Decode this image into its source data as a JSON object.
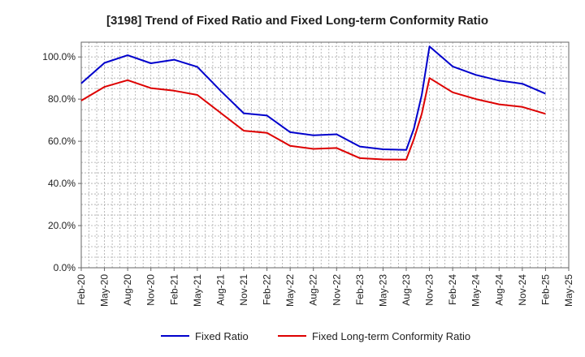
{
  "chart_data": {
    "type": "line",
    "title": "[3198]  Trend of Fixed Ratio and Fixed Long-term Conformity Ratio",
    "xlabel": "",
    "ylabel": "",
    "x_labels": [
      "Feb-20",
      "May-20",
      "Aug-20",
      "Nov-20",
      "Feb-21",
      "May-21",
      "Aug-21",
      "Nov-21",
      "Feb-22",
      "May-22",
      "Aug-22",
      "Nov-22",
      "Feb-23",
      "May-23",
      "Aug-23",
      "Nov-23",
      "Feb-24",
      "May-24",
      "Aug-24",
      "Nov-24",
      "Feb-25",
      "May-25"
    ],
    "y_ticks": [
      "0.0%",
      "20.0%",
      "40.0%",
      "60.0%",
      "80.0%",
      "100.0%"
    ],
    "ylim": [
      0,
      107
    ],
    "grid": true,
    "legend_position": "bottom",
    "series": [
      {
        "name": "Fixed Ratio",
        "color": "#0000cc",
        "x": [
          0,
          1,
          2,
          3,
          4,
          5,
          6,
          7,
          8,
          9,
          10,
          11,
          12,
          13,
          14,
          14.33,
          14.67,
          15,
          16,
          17,
          18,
          19,
          20
        ],
        "values": [
          87.5,
          97.2,
          100.8,
          97.0,
          98.7,
          95.3,
          84.0,
          73.3,
          72.2,
          64.3,
          62.8,
          63.3,
          57.5,
          56.2,
          55.9,
          66.0,
          82.0,
          105.0,
          95.5,
          91.5,
          88.8,
          87.3,
          82.6
        ]
      },
      {
        "name": "Fixed Long-term Conformity Ratio",
        "color": "#dd0000",
        "x": [
          0,
          1,
          2,
          3,
          4,
          5,
          6,
          7,
          8,
          9,
          10,
          11,
          12,
          13,
          14,
          14.33,
          14.67,
          15,
          16,
          17,
          18,
          19,
          20
        ],
        "values": [
          79.3,
          85.8,
          89.0,
          85.2,
          84.0,
          82.0,
          73.5,
          65.0,
          64.0,
          57.8,
          56.4,
          56.8,
          52.0,
          51.4,
          51.3,
          61.0,
          73.0,
          90.0,
          83.2,
          80.0,
          77.5,
          76.3,
          73.0
        ]
      }
    ]
  }
}
